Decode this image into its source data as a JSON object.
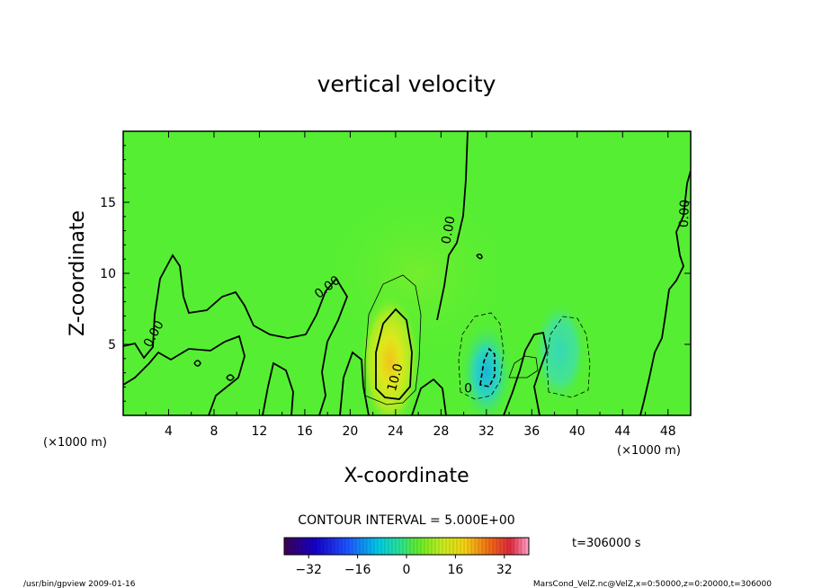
{
  "chart_data": {
    "type": "heatmap",
    "title": "vertical velocity",
    "xlabel": "X-coordinate",
    "ylabel": "Z-coordinate",
    "x_unit": "(×1000 m)",
    "xlim": [
      0,
      50
    ],
    "ylim": [
      0,
      20
    ],
    "x_ticks": [
      4,
      8,
      12,
      16,
      20,
      24,
      28,
      32,
      36,
      40,
      44,
      48
    ],
    "y_ticks": [
      5,
      10,
      15
    ],
    "contour_interval_text": "CONTOUR INTERVAL = 5.000E+00",
    "contour_labels": [
      {
        "text": "0.00",
        "x": 3.0,
        "y": 5.6,
        "angle": -62
      },
      {
        "text": "0.00",
        "x": 18.2,
        "y": 8.8,
        "angle": -38
      },
      {
        "text": "0.00",
        "x": 29.0,
        "y": 13.0,
        "angle": -80
      },
      {
        "text": "0.00",
        "x": 49.8,
        "y": 14.2,
        "angle": -88
      },
      {
        "text": "10.0",
        "x": 24.3,
        "y": 2.6,
        "angle": -75
      },
      {
        "text": "0",
        "x": 30.4,
        "y": 1.6,
        "angle": 0
      }
    ],
    "colorbar": {
      "min": -40,
      "max": 40,
      "tick_labels": [
        "−32",
        "−16",
        "0",
        "16",
        "32"
      ],
      "tick_values": [
        -32,
        -16,
        0,
        16,
        32
      ]
    },
    "time_label": "t=306000  s",
    "field_features": [
      {
        "kind": "updraft",
        "x_center": 23.5,
        "z_center": 3.8,
        "peak": 14
      },
      {
        "kind": "downdraft",
        "x_center": 32.0,
        "z_center": 3.0,
        "peak": -9
      },
      {
        "kind": "downdraft",
        "x_center": 38.5,
        "z_center": 4.5,
        "peak": -5
      }
    ],
    "colors": {
      "field_background": "#55ee33",
      "zero_contour": "#000000"
    }
  },
  "footer": {
    "left": "/usr/bin/gpview   2009-01-16",
    "right": "MarsCond_VelZ.nc@VelZ,x=0:50000,z=0:20000,t=306000"
  }
}
